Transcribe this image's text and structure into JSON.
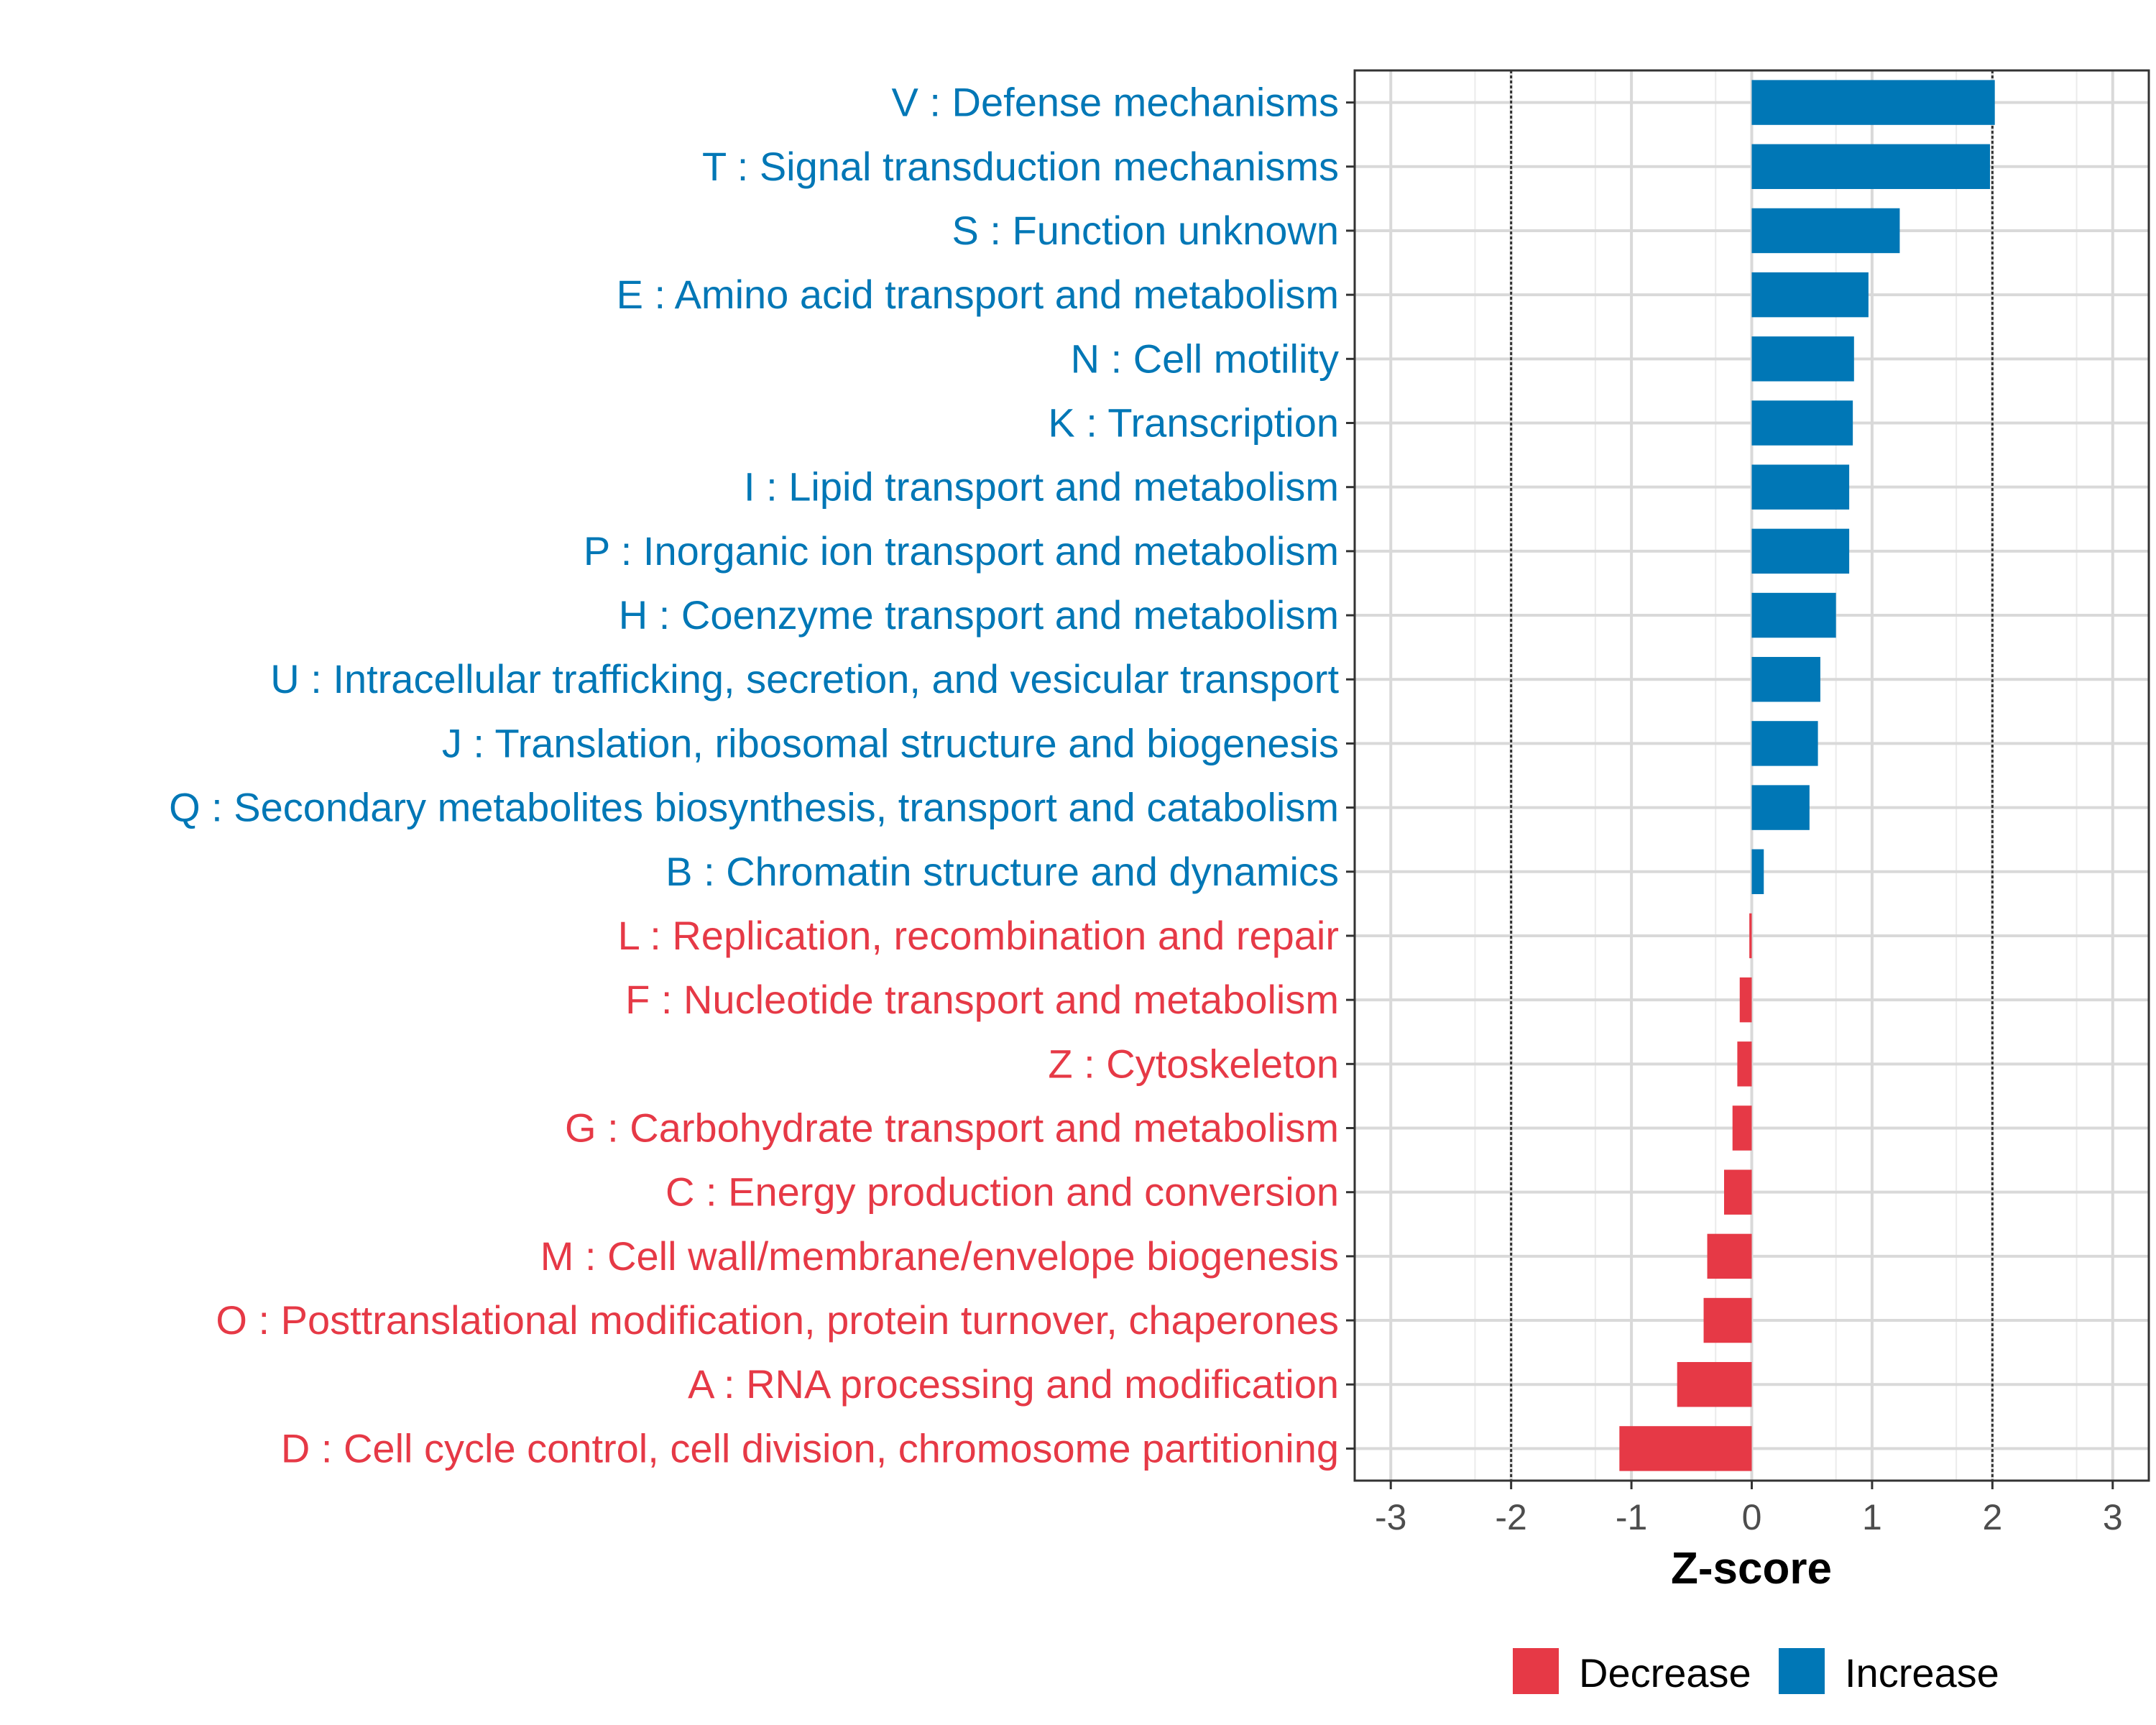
{
  "chart_data": {
    "type": "bar",
    "orientation": "horizontal",
    "xlabel": "Z-score",
    "ylabel": "",
    "xlim": [
      -3.3,
      3.3
    ],
    "xticks": [
      -3,
      -2,
      -1,
      0,
      1,
      2,
      3
    ],
    "xtick_labels": [
      "-3",
      "-2",
      "-1",
      "0",
      "1",
      "2",
      "3"
    ],
    "reference_lines": [
      -2,
      2
    ],
    "grid": true,
    "colors": {
      "Decrease": "#E63946",
      "Increase": "#0077B6"
    },
    "legend": {
      "position": "bottom",
      "entries": [
        {
          "name": "Decrease",
          "color": "#E63946"
        },
        {
          "name": "Increase",
          "color": "#0077B6"
        }
      ]
    },
    "categories": [
      "V : Defense mechanisms",
      "T : Signal transduction mechanisms",
      "S : Function unknown",
      "E : Amino acid transport and metabolism",
      "N : Cell motility",
      "K : Transcription",
      "I : Lipid transport and metabolism",
      "P : Inorganic ion transport and metabolism",
      "H : Coenzyme transport and metabolism",
      "U : Intracellular trafficking, secretion, and vesicular transport",
      "J : Translation, ribosomal structure and biogenesis",
      "Q : Secondary metabolites biosynthesis, transport and catabolism",
      "B : Chromatin structure and dynamics",
      "L : Replication, recombination and repair",
      "F : Nucleotide transport and metabolism",
      "Z : Cytoskeleton",
      "G : Carbohydrate transport and metabolism",
      "C : Energy production and conversion",
      "M : Cell wall/membrane/envelope biogenesis",
      "O : Posttranslational modification, protein turnover, chaperones",
      "A : RNA processing and modification",
      "D : Cell cycle control, cell division, chromosome partitioning"
    ],
    "values": [
      2.02,
      1.98,
      1.23,
      0.97,
      0.85,
      0.84,
      0.81,
      0.81,
      0.7,
      0.57,
      0.55,
      0.48,
      0.1,
      -0.02,
      -0.1,
      -0.12,
      -0.16,
      -0.23,
      -0.37,
      -0.4,
      -0.62,
      -1.1
    ],
    "direction": [
      "Increase",
      "Increase",
      "Increase",
      "Increase",
      "Increase",
      "Increase",
      "Increase",
      "Increase",
      "Increase",
      "Increase",
      "Increase",
      "Increase",
      "Increase",
      "Decrease",
      "Decrease",
      "Decrease",
      "Decrease",
      "Decrease",
      "Decrease",
      "Decrease",
      "Decrease",
      "Decrease"
    ]
  }
}
